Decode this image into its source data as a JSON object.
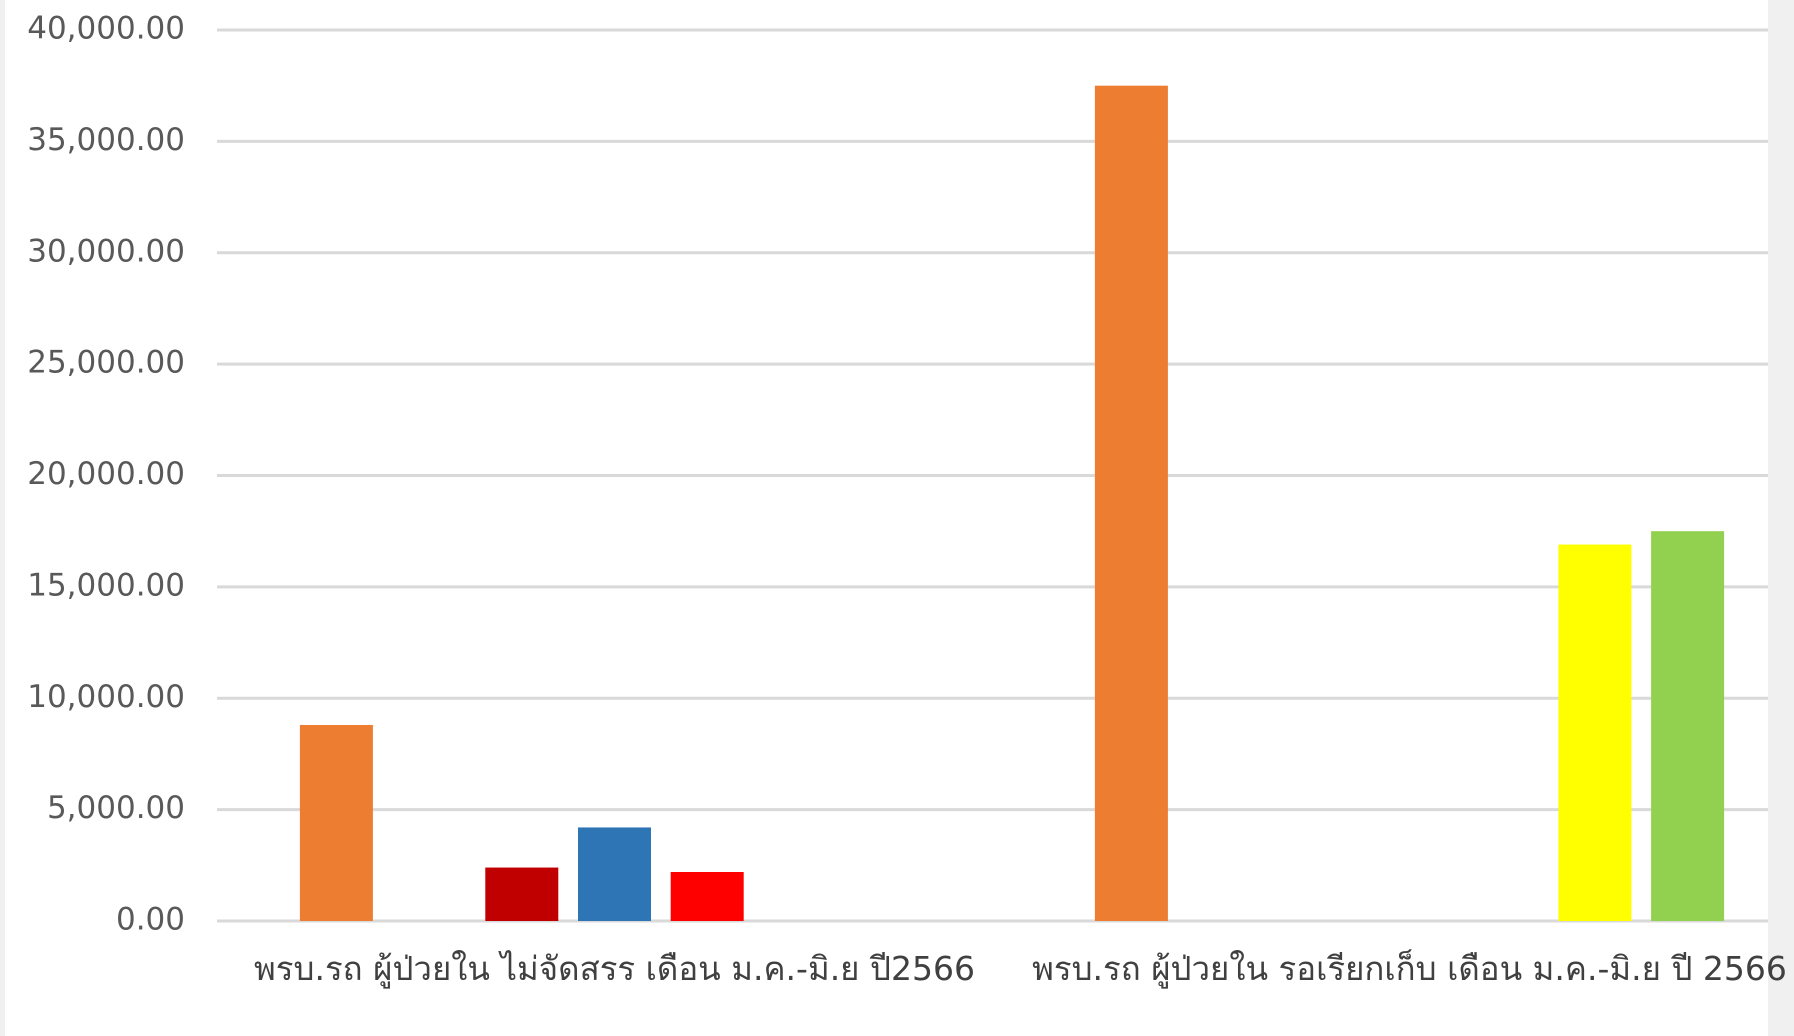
{
  "chart_data": {
    "type": "bar",
    "categories": [
      "พรบ.รถ ผู้ป่วยใน ไม่จัดสรร เดือน ม.ค.-มิ.ย ปี2566",
      "พรบ.รถ ผู้ป่วยใน รอเรียกเก็บ เดือน ม.ค.-มิ.ย ปี 2566"
    ],
    "series": [
      {
        "color": "#ed7d31",
        "values": [
          8800,
          37500
        ]
      },
      {
        "values": [
          null,
          null
        ]
      },
      {
        "color": "#c00000",
        "values": [
          2400,
          null
        ]
      },
      {
        "color": "#2e75b6",
        "values": [
          4200,
          null
        ]
      },
      {
        "color": "#ff0000",
        "values": [
          2200,
          null
        ]
      },
      {
        "color": "#ffff00",
        "values": [
          null,
          16900
        ]
      },
      {
        "color": "#92d050",
        "values": [
          null,
          17500
        ]
      }
    ],
    "ylim": [
      0,
      40000
    ],
    "yticks": [
      {
        "value": 0,
        "label": "0.00"
      },
      {
        "value": 5000,
        "label": "5,000.00"
      },
      {
        "value": 10000,
        "label": "10,000.00"
      },
      {
        "value": 15000,
        "label": "15,000.00"
      },
      {
        "value": 20000,
        "label": "20,000.00"
      },
      {
        "value": 25000,
        "label": "25,000.00"
      },
      {
        "value": 30000,
        "label": "30,000.00"
      },
      {
        "value": 35000,
        "label": "35,000.00"
      },
      {
        "value": 40000,
        "label": "40,000.00"
      }
    ],
    "grid": true
  }
}
